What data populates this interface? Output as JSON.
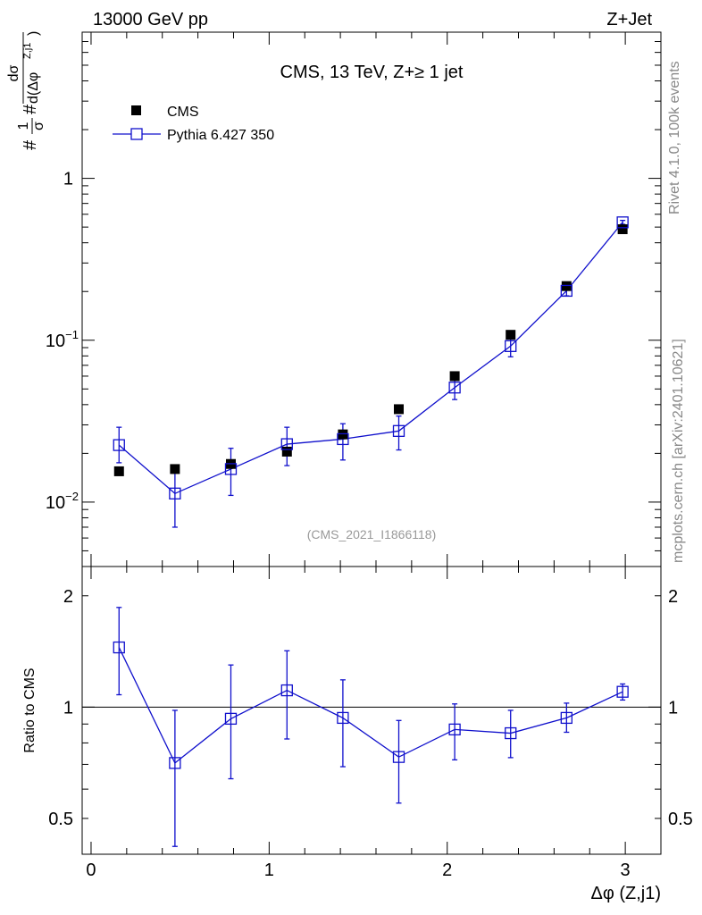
{
  "header": {
    "left": "13000 GeV pp",
    "right": "Z+Jet"
  },
  "side_labels": {
    "rivet": "Rivet 4.1.0,  100k events",
    "mcplots": "mcplots.cern.ch [arXiv:2401.10621]"
  },
  "colors": {
    "mc": "#1010cc",
    "data": "#000000",
    "watermark": "#999999",
    "side_text": "#888888"
  },
  "chart_data": [
    {
      "type": "scatter",
      "title": "CMS, 13 TeV, Z+≥ 1 jet",
      "watermark": "(CMS_2021_I1866118)",
      "ylabel": "#σ/1 # dσ / d(Δφ^Z,j1)",
      "ylabel_parts": {
        "hash1": "#",
        "frac1_num": "1",
        "frac1_den": "σ",
        "hash2": "#",
        "frac2_num": "dσ",
        "frac2_den": "d(Δφ",
        "frac2_sup": "Z,j1",
        "frac2_close": ")"
      },
      "yscale": "log",
      "xlim": [
        -0.05,
        3.2
      ],
      "ylim": [
        0.004,
        8.0
      ],
      "y_ticks": [
        {
          "value": 0.01,
          "base": "10",
          "exp": "−2"
        },
        {
          "value": 0.1,
          "base": "10",
          "exp": "−1"
        },
        {
          "value": 1,
          "label": "1"
        }
      ],
      "legend_position": "top-left",
      "legend": [
        {
          "name": "CMS",
          "marker": "filled-square"
        },
        {
          "name": "Pythia 6.427 350",
          "marker": "open-square-line"
        }
      ],
      "x": [
        0.157,
        0.471,
        0.785,
        1.1,
        1.414,
        1.728,
        2.042,
        2.356,
        2.67,
        2.985
      ],
      "series": [
        {
          "name": "CMS",
          "values": [
            0.0155,
            0.016,
            0.0172,
            0.0205,
            0.0262,
            0.0375,
            0.06,
            0.108,
            0.216,
            0.485
          ]
        },
        {
          "name": "Pythia 6.427 350",
          "values": [
            0.0225,
            0.0113,
            0.016,
            0.0228,
            0.0245,
            0.0275,
            0.051,
            0.092,
            0.202,
            0.535
          ],
          "err_up": [
            0.029,
            0.016,
            0.0215,
            0.029,
            0.0305,
            0.034,
            0.06,
            0.107,
            0.217,
            0.55
          ],
          "err_down": [
            0.0175,
            0.007,
            0.011,
            0.0168,
            0.0182,
            0.021,
            0.043,
            0.079,
            0.188,
            0.52
          ]
        }
      ]
    },
    {
      "type": "scatter",
      "ylabel": "Ratio to CMS",
      "xlabel": "Δφ (Z,j1)",
      "yscale": "log",
      "xlim": [
        -0.05,
        3.2
      ],
      "ylim": [
        0.4,
        2.4
      ],
      "reference_line": 1,
      "x_ticks": [
        0,
        1,
        2,
        3
      ],
      "y_ticks": [
        {
          "value": 0.5,
          "label": "0.5"
        },
        {
          "value": 1,
          "label": "1"
        },
        {
          "value": 2,
          "label": "2"
        }
      ],
      "x": [
        0.157,
        0.471,
        0.785,
        1.1,
        1.414,
        1.728,
        2.042,
        2.356,
        2.67,
        2.985
      ],
      "series": [
        {
          "name": "Pythia 6.427 350",
          "values": [
            1.45,
            0.706,
            0.93,
            1.11,
            0.935,
            0.733,
            0.87,
            0.85,
            0.935,
            1.1
          ],
          "err_up": [
            1.86,
            0.98,
            1.3,
            1.42,
            1.185,
            0.92,
            1.02,
            0.98,
            1.025,
            1.155
          ],
          "err_down": [
            1.08,
            0.42,
            0.64,
            0.82,
            0.69,
            0.55,
            0.72,
            0.73,
            0.855,
            1.045
          ]
        }
      ]
    }
  ]
}
